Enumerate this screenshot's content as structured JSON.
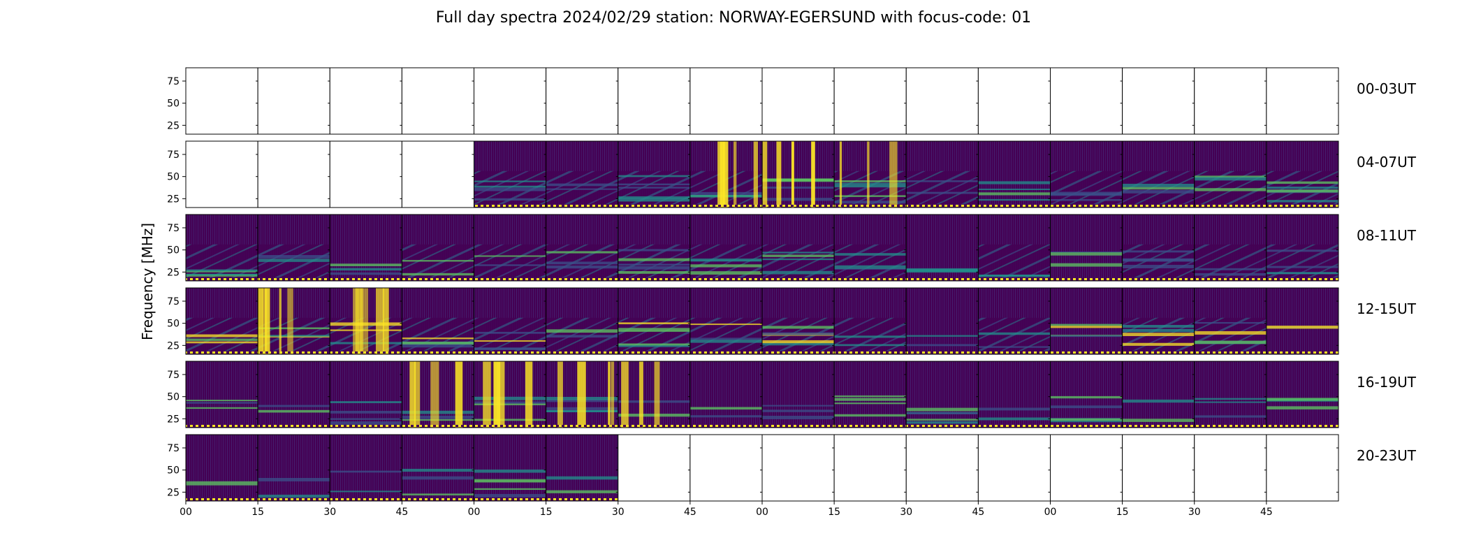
{
  "title": "Full day spectra 2024/02/29 station: NORWAY-EGERSUND with focus-code: 01",
  "chart_data": {
    "type": "heatmap",
    "title": "Full day spectra 2024/02/29 station: NORWAY-EGERSUND with focus-code: 01",
    "ylabel": "Frequency [MHz]",
    "xlabel": "",
    "ylim": [
      15,
      90
    ],
    "y_ticks": [
      "75",
      "50",
      "25"
    ],
    "y_tick_values": [
      75,
      50,
      25
    ],
    "x_ticks": [
      "00",
      "15",
      "30",
      "45",
      "00",
      "15",
      "30",
      "45",
      "00",
      "15",
      "30",
      "45",
      "00",
      "15",
      "30",
      "45"
    ],
    "row_labels": [
      "00-03UT",
      "04-07UT",
      "08-11UT",
      "12-15UT",
      "16-19UT",
      "20-23UT"
    ],
    "panels_per_row": 16,
    "colormap": [
      "#440154",
      "#3b528b",
      "#21918c",
      "#5ec962",
      "#fde725"
    ],
    "rows": [
      {
        "label": "00-03UT",
        "has_data": [
          0,
          0,
          0,
          0,
          0,
          0,
          0,
          0,
          0,
          0,
          0,
          0,
          0,
          0,
          0,
          0
        ]
      },
      {
        "label": "04-07UT",
        "has_data": [
          0,
          0,
          0,
          0,
          1,
          1,
          1,
          1,
          1,
          1,
          1,
          1,
          1,
          1,
          1,
          1
        ]
      },
      {
        "label": "08-11UT",
        "has_data": [
          1,
          1,
          1,
          1,
          1,
          1,
          1,
          1,
          1,
          1,
          1,
          1,
          1,
          1,
          1,
          1
        ]
      },
      {
        "label": "12-15UT",
        "has_data": [
          1,
          1,
          1,
          1,
          1,
          1,
          1,
          1,
          1,
          1,
          1,
          1,
          1,
          1,
          1,
          1
        ]
      },
      {
        "label": "16-19UT",
        "has_data": [
          1,
          1,
          1,
          1,
          1,
          1,
          1,
          1,
          1,
          1,
          1,
          1,
          1,
          1,
          1,
          1
        ]
      },
      {
        "label": "20-23UT",
        "has_data": [
          1,
          1,
          1,
          1,
          1,
          1,
          0,
          0,
          0,
          0,
          0,
          0,
          0,
          0,
          0,
          0
        ]
      }
    ]
  }
}
